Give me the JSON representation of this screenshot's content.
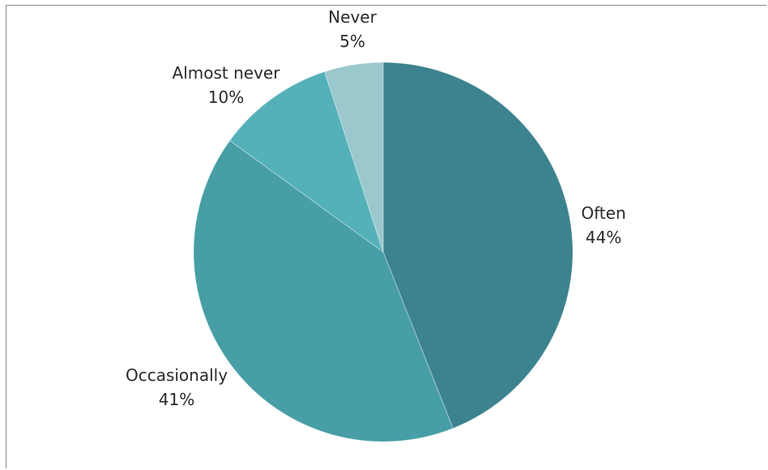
{
  "chart_data": {
    "type": "pie",
    "title": "",
    "slices": [
      {
        "label": "Often",
        "value": 44,
        "value_label": "44%",
        "color": "#3d828f"
      },
      {
        "label": "Occasionally",
        "value": 41,
        "value_label": "41%",
        "color": "#479ea7"
      },
      {
        "label": "Almost never",
        "value": 10,
        "value_label": "10%",
        "color": "#54b1ba"
      },
      {
        "label": "Never",
        "value": 5,
        "value_label": "5%",
        "color": "#9ac8cd"
      }
    ],
    "start_angle": "12 o'clock",
    "direction": "clockwise",
    "legend": "none",
    "data_labels": "category name and percentage outside slices"
  }
}
